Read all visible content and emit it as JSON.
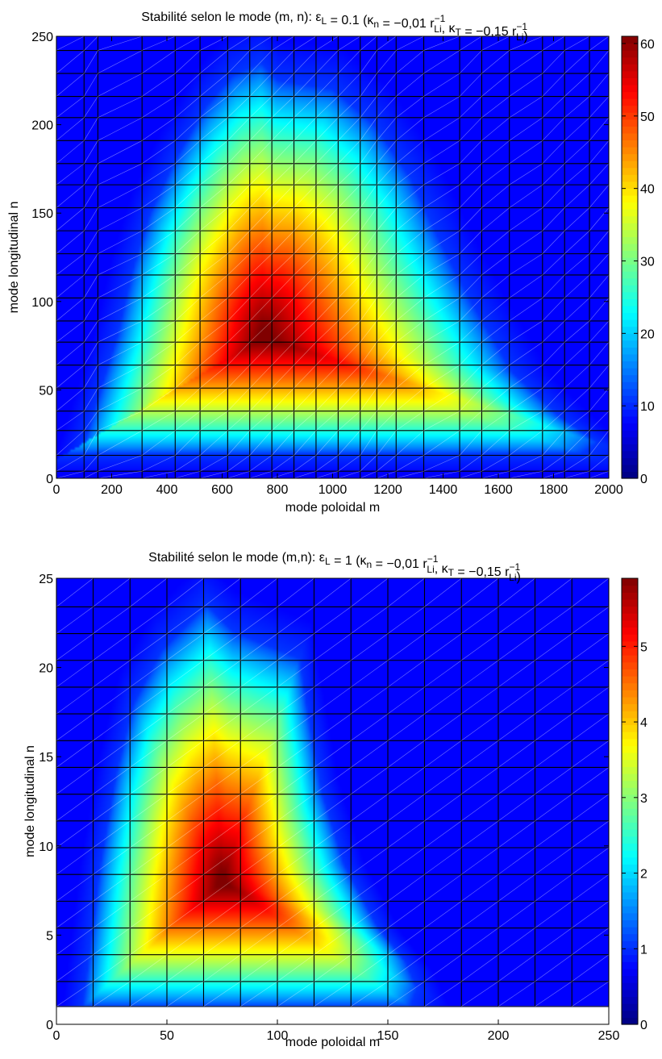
{
  "chart_data": [
    {
      "type": "heatmap",
      "title_main": "Stabilité selon le mode (m, n): ε",
      "title_tail": " = 0.1 (κ",
      "title_eq_n": " = −0,01 r",
      "title_sep": ", κ",
      "title_eq_t": " = −0,15 r",
      "title_close": ")",
      "sub_L": "L",
      "sub_n": "n",
      "sub_T": "T",
      "sub_Li": "Li",
      "sup_inv": "−1",
      "xlabel": "mode poloidal m",
      "ylabel": "mode longitudinal n",
      "xlim": [
        0,
        2000
      ],
      "ylim": [
        0,
        250
      ],
      "xticks": [
        "0",
        "200",
        "400",
        "600",
        "800",
        "1000",
        "1200",
        "1400",
        "1600",
        "1800",
        "2000"
      ],
      "xtick_values": [
        0,
        200,
        400,
        600,
        800,
        1000,
        1200,
        1400,
        1600,
        1800,
        2000
      ],
      "yticks": [
        "0",
        "50",
        "100",
        "150",
        "200",
        "250"
      ],
      "ytick_values": [
        0,
        50,
        100,
        150,
        200,
        250
      ],
      "colorbar_ticks": [
        "0",
        "10",
        "20",
        "30",
        "40",
        "50",
        "60"
      ],
      "colorbar_values": [
        0,
        10,
        20,
        30,
        40,
        50,
        60
      ],
      "clim": [
        0,
        61
      ],
      "colormap": "jet",
      "peak": {
        "m": 750,
        "n": 80,
        "value": 61
      },
      "region_left": [
        [
          0,
          14
        ],
        [
          100,
          20
        ],
        [
          150,
          45
        ],
        [
          220,
          80
        ],
        [
          280,
          120
        ],
        [
          340,
          150
        ],
        [
          430,
          180
        ],
        [
          540,
          210
        ],
        [
          640,
          228
        ],
        [
          740,
          235
        ],
        [
          800,
          225
        ]
      ],
      "region_right": [
        [
          0,
          14
        ],
        [
          1900,
          14
        ],
        [
          1960,
          20
        ],
        [
          1820,
          35
        ],
        [
          1650,
          60
        ],
        [
          1500,
          100
        ],
        [
          1400,
          130
        ],
        [
          1280,
          170
        ],
        [
          1150,
          200
        ],
        [
          1000,
          220
        ],
        [
          800,
          225
        ]
      ],
      "grid_m": [
        0,
        100,
        150,
        310,
        430,
        520,
        620,
        700,
        780,
        860,
        940,
        1020,
        1100,
        1160,
        1230,
        1330,
        1460,
        1540,
        1640,
        1760,
        1840,
        1930,
        2000
      ],
      "grid_n": [
        0,
        4,
        13,
        27,
        38,
        51,
        64,
        77,
        89,
        102,
        115,
        127,
        140,
        153,
        166,
        178,
        191,
        204,
        216,
        229,
        242,
        250
      ]
    },
    {
      "type": "heatmap",
      "title_main": "Stabilité selon le mode (m,n): ε",
      "title_tail": " = 1 (κ",
      "title_eq_n": " = −0,01 r",
      "title_sep": ", κ",
      "title_eq_t": " = −0,15 r",
      "title_close": ")",
      "sub_L": "L",
      "sub_n": "n",
      "sub_T": "T",
      "sub_Li": "Li",
      "sup_inv": "−1",
      "xlabel": "mode poloidal m",
      "ylabel": "mode longitudinal n",
      "xlim": [
        0,
        250
      ],
      "ylim": [
        0,
        25
      ],
      "xticks": [
        "0",
        "50",
        "100",
        "150",
        "200",
        "250"
      ],
      "xtick_values": [
        0,
        50,
        100,
        150,
        200,
        250
      ],
      "yticks": [
        "0",
        "5",
        "10",
        "15",
        "20",
        "25"
      ],
      "ytick_values": [
        0,
        5,
        10,
        15,
        20,
        25
      ],
      "colorbar_ticks": [
        "0",
        "1",
        "2",
        "3",
        "4",
        "5"
      ],
      "colorbar_values": [
        0,
        1,
        2,
        3,
        4,
        5
      ],
      "clim": [
        0,
        5.9
      ],
      "colormap": "jet",
      "peak": {
        "m": 75,
        "n": 8,
        "value": 5.9
      },
      "data_floor_n": 1,
      "region_left": [
        [
          12,
          1
        ],
        [
          15,
          4
        ],
        [
          20,
          9
        ],
        [
          27,
          14
        ],
        [
          35,
          18
        ],
        [
          48,
          21
        ],
        [
          68,
          23.5
        ],
        [
          80,
          22
        ],
        [
          110,
          20.5
        ]
      ],
      "region_right": [
        [
          12,
          1
        ],
        [
          160,
          1
        ],
        [
          163,
          2
        ],
        [
          158,
          3.5
        ],
        [
          145,
          5.5
        ],
        [
          130,
          9
        ],
        [
          120,
          13
        ],
        [
          113,
          18
        ],
        [
          110,
          20.5
        ]
      ],
      "grid_m": [
        0,
        16.6,
        33.3,
        50,
        66.6,
        83.3,
        100,
        116.6,
        133.3,
        150,
        166.6,
        183.3,
        200,
        216.6,
        233.3,
        250
      ],
      "grid_n": [
        1,
        2.4,
        3.9,
        5.4,
        6.9,
        8.4,
        9.9,
        11.4,
        12.9,
        14.4,
        15.9,
        17.4,
        18.9,
        20.4,
        21.9,
        23.4,
        25
      ]
    }
  ]
}
